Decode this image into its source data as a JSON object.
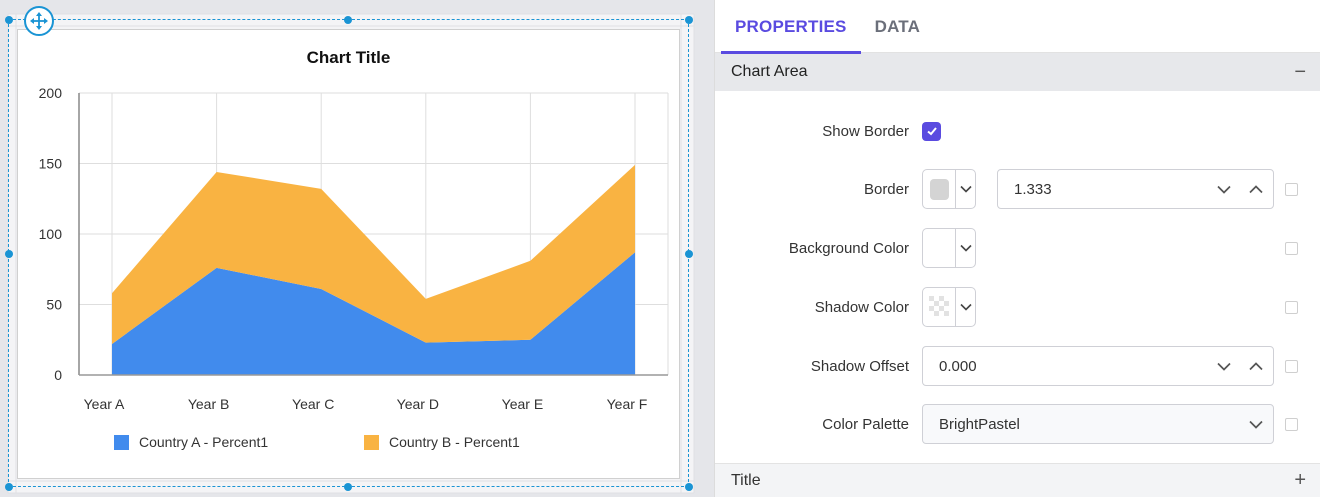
{
  "designer": {
    "move_handle_icon": "move-arrows-icon",
    "selection_color": "#1a94d4"
  },
  "chart_data": {
    "type": "area",
    "stacked": true,
    "title": "Chart Title",
    "xlabel": "",
    "ylabel": "",
    "categories": [
      "Year A",
      "Year B",
      "Year C",
      "Year D",
      "Year E",
      "Year F"
    ],
    "series": [
      {
        "name": "Country A - Percent1",
        "color": "#418bed",
        "values": [
          22,
          76,
          61,
          23,
          25,
          87
        ]
      },
      {
        "name": "Country B - Percent1",
        "color": "#f9b342",
        "values": [
          36,
          68,
          71,
          31,
          56,
          62
        ]
      }
    ],
    "yticks": [
      "0",
      "50",
      "100",
      "150",
      "200"
    ],
    "ylim": [
      0,
      200
    ],
    "grid": true,
    "legend_position": "bottom"
  },
  "panel": {
    "tabs": [
      {
        "label": "PROPERTIES",
        "active": true
      },
      {
        "label": "DATA",
        "active": false
      }
    ],
    "section": {
      "title": "Chart Area",
      "toggle": "−"
    },
    "rows": {
      "show_border": {
        "label": "Show Border",
        "checked": true
      },
      "border": {
        "label": "Border",
        "color": "#d4d4d4",
        "width_value": "1.333"
      },
      "background_color": {
        "label": "Background Color",
        "color": "#ffffff"
      },
      "shadow_color": {
        "label": "Shadow Color",
        "color": "transparent"
      },
      "shadow_offset": {
        "label": "Shadow Offset",
        "value": "0.000"
      },
      "color_palette": {
        "label": "Color Palette",
        "value": "BrightPastel"
      }
    },
    "next_section": {
      "title": "Title",
      "toggle": "+"
    },
    "accent_color": "#5a4be0"
  }
}
